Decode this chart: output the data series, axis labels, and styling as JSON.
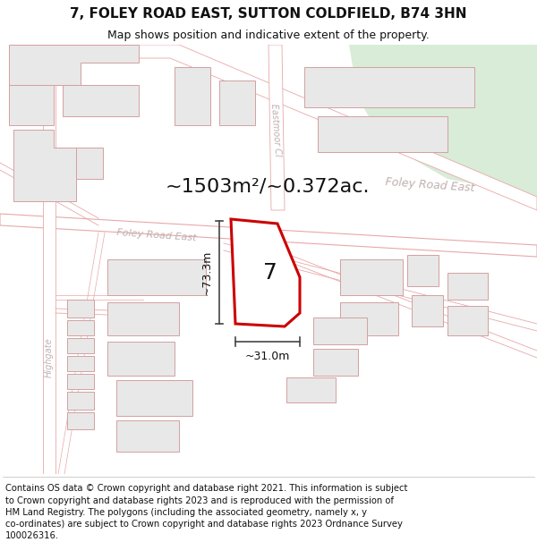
{
  "title": "7, FOLEY ROAD EAST, SUTTON COLDFIELD, B74 3HN",
  "subtitle": "Map shows position and indicative extent of the property.",
  "footer": "Contains OS data © Crown copyright and database right 2021. This information is subject to Crown copyright and database rights 2023 and is reproduced with the permission of HM Land Registry. The polygons (including the associated geometry, namely x, y co-ordinates) are subject to Crown copyright and database rights 2023 Ordnance Survey 100026316.",
  "area_label": "~1503m²/~0.372ac.",
  "property_number": "7",
  "dim_height": "~73.3m",
  "dim_width": "~31.0m",
  "map_bg": "#ffffff",
  "building_fill": "#e8e8e8",
  "building_stroke": "#d4a0a0",
  "road_stroke": "#e8a8a8",
  "road_fill": "#ffffff",
  "green_fill": "#d8ecd8",
  "highlight_stroke": "#cc0000",
  "highlight_fill": "#ffffff",
  "label_color": "#c0b0b0",
  "dim_color": "#444444",
  "title_fontsize": 11,
  "subtitle_fontsize": 9,
  "footer_fontsize": 7.2,
  "area_fontsize": 16,
  "num_fontsize": 18,
  "road_label_fontsize": 8
}
